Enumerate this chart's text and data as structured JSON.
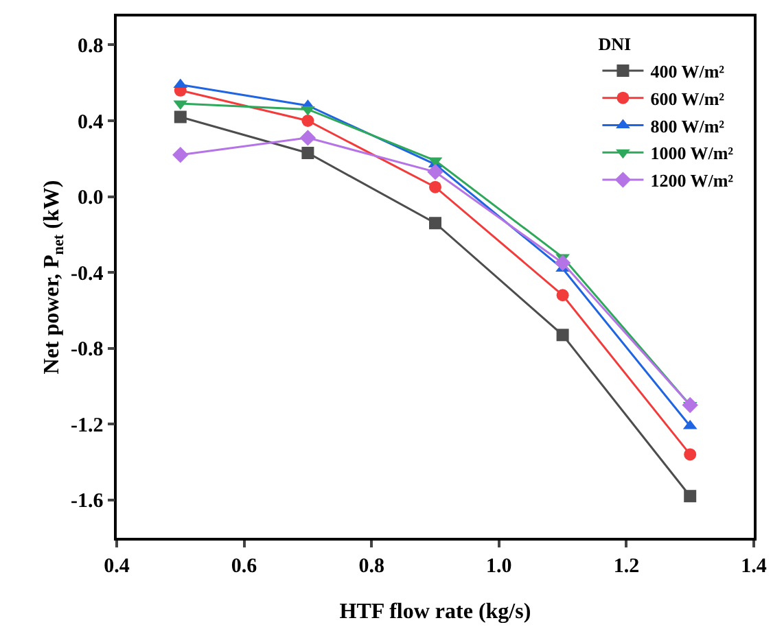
{
  "chart_data": {
    "type": "line",
    "xlabel": "HTF flow rate (kg/s)",
    "ylabel": "Net power, P$_{net}$ (kW)",
    "legend_title": "DNI",
    "legend": "top right",
    "line_style": "solid",
    "grid": false,
    "x": [
      0.5,
      0.7,
      0.9,
      1.1,
      1.3
    ],
    "xlim": [
      0.4,
      1.4
    ],
    "xticks": [
      {
        "value": 0.4,
        "label": "0.4"
      },
      {
        "value": 0.6,
        "label": "0.6"
      },
      {
        "value": 0.8,
        "label": "0.8"
      },
      {
        "value": 1.0,
        "label": "1.0"
      },
      {
        "value": 1.2,
        "label": "1.2"
      },
      {
        "value": 1.4,
        "label": "1.4"
      }
    ],
    "ylim": [
      -1.8,
      0.95
    ],
    "yticks": [
      {
        "value": -1.6,
        "label": "-1.6"
      },
      {
        "value": -1.2,
        "label": "-1.2"
      },
      {
        "value": -0.8,
        "label": "-0.8"
      },
      {
        "value": -0.4,
        "label": "-0.4"
      },
      {
        "value": 0,
        "label": "0.0"
      },
      {
        "value": 0.4,
        "label": "0.4"
      },
      {
        "value": 0.8,
        "label": "0.8"
      }
    ],
    "series": [
      {
        "name": "400 W/m²",
        "color": "#4d4d4d",
        "marker": "square",
        "values": [
          0.42,
          0.23,
          -0.14,
          -0.73,
          -1.58
        ]
      },
      {
        "name": "600 W/m²",
        "color": "#f23c3c",
        "marker": "circle",
        "values": [
          0.56,
          0.4,
          0.05,
          -0.52,
          -1.36
        ]
      },
      {
        "name": "800 W/m²",
        "color": "#1f64e0",
        "marker": "triangle",
        "values": [
          0.59,
          0.48,
          0.17,
          -0.38,
          -1.21
        ]
      },
      {
        "name": "1000 W/m²",
        "color": "#2ea85a",
        "marker": "triangle-down",
        "values": [
          0.49,
          0.46,
          0.19,
          -0.32,
          -1.1
        ]
      },
      {
        "name": "1200 W/m²",
        "color": "#b574e6",
        "marker": "diamond",
        "values": [
          0.22,
          0.31,
          0.13,
          -0.35,
          -1.1
        ]
      }
    ]
  }
}
